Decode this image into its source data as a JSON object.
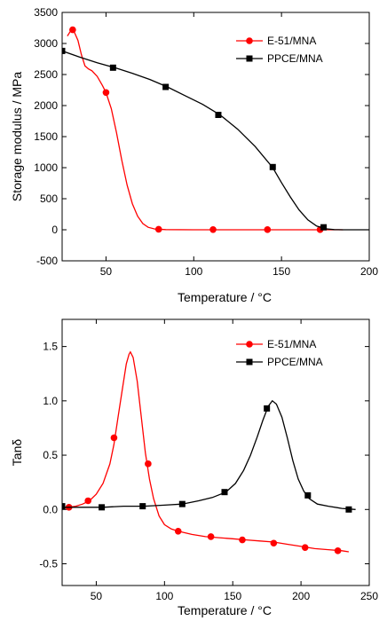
{
  "chart_data": [
    {
      "type": "line",
      "xlabel": "Temperature / °C",
      "ylabel": "Storage modulus / MPa",
      "xlim": [
        25,
        200
      ],
      "ylim": [
        -500,
        3500
      ],
      "xticks": [
        50,
        100,
        150,
        200
      ],
      "yticks": [
        -500,
        0,
        500,
        1000,
        1500,
        2000,
        2500,
        3000,
        3500
      ],
      "legend_position": "top-right",
      "series": [
        {
          "name": "E-51/MNA",
          "color": "#ff0000",
          "marker": "circle",
          "curve": [
            [
              28,
              3120
            ],
            [
              30,
              3210
            ],
            [
              32,
              3180
            ],
            [
              34,
              3050
            ],
            [
              36,
              2820
            ],
            [
              38,
              2640
            ],
            [
              40,
              2590
            ],
            [
              42,
              2560
            ],
            [
              45,
              2470
            ],
            [
              48,
              2320
            ],
            [
              50,
              2210
            ],
            [
              53,
              1950
            ],
            [
              56,
              1560
            ],
            [
              59,
              1120
            ],
            [
              62,
              720
            ],
            [
              65,
              420
            ],
            [
              68,
              220
            ],
            [
              71,
              100
            ],
            [
              74,
              40
            ],
            [
              78,
              12
            ],
            [
              84,
              3
            ],
            [
              100,
              0
            ],
            [
              130,
              0
            ],
            [
              160,
              0
            ],
            [
              175,
              0
            ],
            [
              185,
              0
            ]
          ],
          "markers": [
            [
              31,
              3220
            ],
            [
              50,
              2210
            ],
            [
              80,
              8
            ],
            [
              111,
              3
            ],
            [
              142,
              2
            ],
            [
              172,
              2
            ]
          ]
        },
        {
          "name": "PPCE/MNA",
          "color": "#000000",
          "marker": "square",
          "curve": [
            [
              25,
              2880
            ],
            [
              35,
              2780
            ],
            [
              45,
              2690
            ],
            [
              55,
              2610
            ],
            [
              65,
              2520
            ],
            [
              75,
              2420
            ],
            [
              85,
              2300
            ],
            [
              95,
              2160
            ],
            [
              105,
              2020
            ],
            [
              115,
              1850
            ],
            [
              125,
              1620
            ],
            [
              135,
              1340
            ],
            [
              145,
              1000
            ],
            [
              150,
              760
            ],
            [
              155,
              530
            ],
            [
              160,
              320
            ],
            [
              165,
              160
            ],
            [
              170,
              60
            ],
            [
              175,
              15
            ],
            [
              180,
              3
            ],
            [
              185,
              0
            ],
            [
              190,
              0
            ],
            [
              200,
              0
            ]
          ],
          "markers": [
            [
              25,
              2880
            ],
            [
              54,
              2610
            ],
            [
              84,
              2300
            ],
            [
              114,
              1850
            ],
            [
              145,
              1010
            ],
            [
              174,
              40
            ]
          ]
        }
      ]
    },
    {
      "type": "line",
      "xlabel": "Temperature / °C",
      "ylabel": "Tanδ",
      "xlim": [
        25,
        250
      ],
      "ylim": [
        -0.7,
        1.75
      ],
      "xticks": [
        50,
        100,
        150,
        200,
        250
      ],
      "yticks": [
        -0.5,
        0.0,
        0.5,
        1.0,
        1.5
      ],
      "ytick_labels": [
        "-0.5",
        "0.0",
        "0.5",
        "1.0",
        "1.5"
      ],
      "legend_position": "top-right",
      "series": [
        {
          "name": "E-51/MNA",
          "color": "#ff0000",
          "marker": "circle",
          "curve": [
            [
              25,
              0.01
            ],
            [
              30,
              0.02
            ],
            [
              35,
              0.03
            ],
            [
              40,
              0.05
            ],
            [
              45,
              0.08
            ],
            [
              50,
              0.14
            ],
            [
              55,
              0.24
            ],
            [
              60,
              0.42
            ],
            [
              63,
              0.6
            ],
            [
              66,
              0.85
            ],
            [
              69,
              1.1
            ],
            [
              72,
              1.34
            ],
            [
              74,
              1.43
            ],
            [
              75,
              1.45
            ],
            [
              77,
              1.4
            ],
            [
              80,
              1.18
            ],
            [
              83,
              0.85
            ],
            [
              86,
              0.52
            ],
            [
              89,
              0.28
            ],
            [
              92,
              0.1
            ],
            [
              96,
              -0.06
            ],
            [
              100,
              -0.14
            ],
            [
              105,
              -0.18
            ],
            [
              110,
              -0.2
            ],
            [
              120,
              -0.23
            ],
            [
              130,
              -0.25
            ],
            [
              140,
              -0.26
            ],
            [
              150,
              -0.27
            ],
            [
              160,
              -0.28
            ],
            [
              170,
              -0.29
            ],
            [
              180,
              -0.3
            ],
            [
              190,
              -0.32
            ],
            [
              200,
              -0.34
            ],
            [
              210,
              -0.36
            ],
            [
              220,
              -0.37
            ],
            [
              230,
              -0.38
            ],
            [
              235,
              -0.39
            ]
          ],
          "markers": [
            [
              30,
              0.02
            ],
            [
              44,
              0.08
            ],
            [
              63,
              0.66
            ],
            [
              88,
              0.42
            ],
            [
              110,
              -0.2
            ],
            [
              134,
              -0.25
            ],
            [
              157,
              -0.28
            ],
            [
              180,
              -0.31
            ],
            [
              203,
              -0.35
            ],
            [
              227,
              -0.38
            ]
          ]
        },
        {
          "name": "PPCE/MNA",
          "color": "#000000",
          "marker": "square",
          "curve": [
            [
              25,
              0.02
            ],
            [
              40,
              0.02
            ],
            [
              55,
              0.02
            ],
            [
              70,
              0.03
            ],
            [
              85,
              0.03
            ],
            [
              100,
              0.04
            ],
            [
              113,
              0.05
            ],
            [
              125,
              0.08
            ],
            [
              135,
              0.11
            ],
            [
              145,
              0.16
            ],
            [
              152,
              0.24
            ],
            [
              158,
              0.36
            ],
            [
              163,
              0.5
            ],
            [
              168,
              0.67
            ],
            [
              172,
              0.82
            ],
            [
              176,
              0.95
            ],
            [
              179,
              1.0
            ],
            [
              182,
              0.97
            ],
            [
              186,
              0.85
            ],
            [
              190,
              0.66
            ],
            [
              194,
              0.45
            ],
            [
              198,
              0.28
            ],
            [
              202,
              0.17
            ],
            [
              206,
              0.1
            ],
            [
              212,
              0.05
            ],
            [
              220,
              0.03
            ],
            [
              230,
              0.01
            ],
            [
              240,
              0.0
            ]
          ],
          "markers": [
            [
              25,
              0.03
            ],
            [
              54,
              0.02
            ],
            [
              84,
              0.03
            ],
            [
              113,
              0.05
            ],
            [
              144,
              0.16
            ],
            [
              175,
              0.93
            ],
            [
              205,
              0.13
            ],
            [
              235,
              0.0
            ]
          ]
        }
      ]
    }
  ]
}
